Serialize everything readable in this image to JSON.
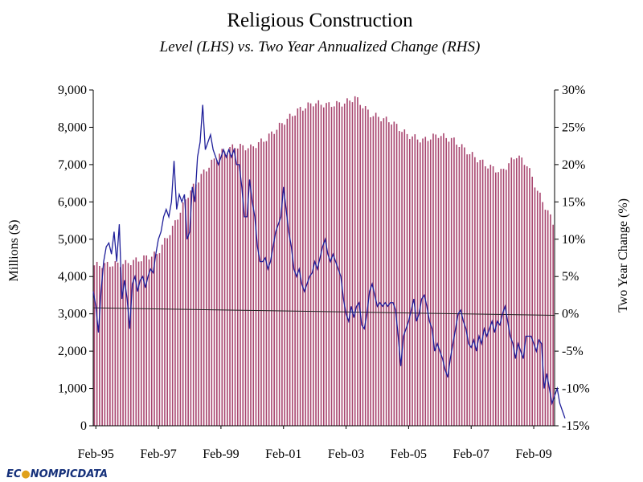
{
  "chart_data": {
    "type": "bar+line",
    "title": "Religious Construction",
    "subtitle": "Level (LHS) vs. Two Year Annualized Change (RHS)",
    "ylabel_left": "Millions ($)",
    "ylabel_right": "Two Year Change (%)",
    "ylim_left": [
      0,
      9000
    ],
    "ylim_right": [
      -15,
      30
    ],
    "yticks_left": [
      "0",
      "1,000",
      "2,000",
      "3,000",
      "4,000",
      "5,000",
      "6,000",
      "7,000",
      "8,000",
      "9,000"
    ],
    "yticks_right": [
      "-15%",
      "-10%",
      "-5%",
      "0%",
      "5%",
      "10%",
      "15%",
      "20%",
      "25%",
      "30%"
    ],
    "xticks": [
      "Feb-95",
      "Feb-97",
      "Feb-99",
      "Feb-01",
      "Feb-03",
      "Feb-05",
      "Feb-07",
      "Feb-09"
    ],
    "x_start": "Jan-95",
    "x_end": "Sep-09",
    "series": [
      {
        "name": "Level",
        "axis": "left",
        "kind": "bar",
        "color": "#a8456f",
        "anchors": [
          {
            "m": 0,
            "v": 4300
          },
          {
            "m": 12,
            "v": 4350
          },
          {
            "m": 24,
            "v": 4600
          },
          {
            "m": 30,
            "v": 5300
          },
          {
            "m": 36,
            "v": 6200
          },
          {
            "m": 42,
            "v": 6800
          },
          {
            "m": 48,
            "v": 7300
          },
          {
            "m": 54,
            "v": 7500
          },
          {
            "m": 60,
            "v": 7450
          },
          {
            "m": 66,
            "v": 7700
          },
          {
            "m": 72,
            "v": 8100
          },
          {
            "m": 78,
            "v": 8450
          },
          {
            "m": 84,
            "v": 8650
          },
          {
            "m": 90,
            "v": 8600
          },
          {
            "m": 96,
            "v": 8650
          },
          {
            "m": 100,
            "v": 8800
          },
          {
            "m": 106,
            "v": 8350
          },
          {
            "m": 114,
            "v": 8150
          },
          {
            "m": 120,
            "v": 7800
          },
          {
            "m": 126,
            "v": 7650
          },
          {
            "m": 132,
            "v": 7800
          },
          {
            "m": 138,
            "v": 7650
          },
          {
            "m": 144,
            "v": 7300
          },
          {
            "m": 150,
            "v": 7000
          },
          {
            "m": 156,
            "v": 6800
          },
          {
            "m": 162,
            "v": 7250
          },
          {
            "m": 166,
            "v": 7000
          },
          {
            "m": 170,
            "v": 6300
          },
          {
            "m": 176,
            "v": 5450
          }
        ]
      },
      {
        "name": "Two Year Annualized Change",
        "axis": "right",
        "kind": "line",
        "color": "#1f1f9a",
        "anchors": [
          {
            "m": 0,
            "v": 3
          },
          {
            "m": 1,
            "v": 1
          },
          {
            "m": 2,
            "v": -2.5
          },
          {
            "m": 3,
            "v": 3
          },
          {
            "m": 4,
            "v": 7
          },
          {
            "m": 5,
            "v": 9
          },
          {
            "m": 6,
            "v": 9.5
          },
          {
            "m": 7,
            "v": 8
          },
          {
            "m": 8,
            "v": 11
          },
          {
            "m": 9,
            "v": 7
          },
          {
            "m": 10,
            "v": 12
          },
          {
            "m": 11,
            "v": 2
          },
          {
            "m": 12,
            "v": 4.5
          },
          {
            "m": 13,
            "v": 2
          },
          {
            "m": 14,
            "v": -2
          },
          {
            "m": 15,
            "v": 4
          },
          {
            "m": 16,
            "v": 5
          },
          {
            "m": 17,
            "v": 3
          },
          {
            "m": 18,
            "v": 4.5
          },
          {
            "m": 19,
            "v": 5
          },
          {
            "m": 20,
            "v": 3.5
          },
          {
            "m": 21,
            "v": 5
          },
          {
            "m": 22,
            "v": 6
          },
          {
            "m": 23,
            "v": 5.5
          },
          {
            "m": 24,
            "v": 8
          },
          {
            "m": 25,
            "v": 10
          },
          {
            "m": 26,
            "v": 11
          },
          {
            "m": 27,
            "v": 13
          },
          {
            "m": 28,
            "v": 14
          },
          {
            "m": 29,
            "v": 13
          },
          {
            "m": 30,
            "v": 15
          },
          {
            "m": 31,
            "v": 20.5
          },
          {
            "m": 32,
            "v": 14
          },
          {
            "m": 33,
            "v": 16
          },
          {
            "m": 34,
            "v": 15
          },
          {
            "m": 35,
            "v": 16
          },
          {
            "m": 36,
            "v": 10
          },
          {
            "m": 37,
            "v": 11
          },
          {
            "m": 38,
            "v": 17
          },
          {
            "m": 39,
            "v": 15
          },
          {
            "m": 40,
            "v": 21
          },
          {
            "m": 41,
            "v": 23
          },
          {
            "m": 42,
            "v": 28
          },
          {
            "m": 43,
            "v": 22
          },
          {
            "m": 44,
            "v": 23
          },
          {
            "m": 45,
            "v": 24
          },
          {
            "m": 46,
            "v": 22
          },
          {
            "m": 47,
            "v": 21
          },
          {
            "m": 48,
            "v": 20
          },
          {
            "m": 49,
            "v": 21
          },
          {
            "m": 50,
            "v": 22
          },
          {
            "m": 51,
            "v": 21
          },
          {
            "m": 52,
            "v": 22
          },
          {
            "m": 53,
            "v": 21
          },
          {
            "m": 54,
            "v": 22
          },
          {
            "m": 55,
            "v": 20
          },
          {
            "m": 56,
            "v": 20
          },
          {
            "m": 57,
            "v": 17
          },
          {
            "m": 58,
            "v": 13
          },
          {
            "m": 59,
            "v": 13
          },
          {
            "m": 60,
            "v": 18
          },
          {
            "m": 61,
            "v": 15
          },
          {
            "m": 62,
            "v": 13
          },
          {
            "m": 63,
            "v": 9
          },
          {
            "m": 64,
            "v": 7
          },
          {
            "m": 65,
            "v": 7
          },
          {
            "m": 66,
            "v": 7.5
          },
          {
            "m": 67,
            "v": 6
          },
          {
            "m": 68,
            "v": 7
          },
          {
            "m": 69,
            "v": 9
          },
          {
            "m": 70,
            "v": 11
          },
          {
            "m": 71,
            "v": 12
          },
          {
            "m": 72,
            "v": 13
          },
          {
            "m": 73,
            "v": 17
          },
          {
            "m": 74,
            "v": 14
          },
          {
            "m": 75,
            "v": 11
          },
          {
            "m": 76,
            "v": 9
          },
          {
            "m": 77,
            "v": 6
          },
          {
            "m": 78,
            "v": 5
          },
          {
            "m": 79,
            "v": 6
          },
          {
            "m": 80,
            "v": 4
          },
          {
            "m": 81,
            "v": 3
          },
          {
            "m": 82,
            "v": 4
          },
          {
            "m": 83,
            "v": 5
          },
          {
            "m": 84,
            "v": 5.5
          },
          {
            "m": 85,
            "v": 7
          },
          {
            "m": 86,
            "v": 6
          },
          {
            "m": 87,
            "v": 7.5
          },
          {
            "m": 88,
            "v": 9
          },
          {
            "m": 89,
            "v": 10
          },
          {
            "m": 90,
            "v": 8
          },
          {
            "m": 91,
            "v": 7
          },
          {
            "m": 92,
            "v": 8
          },
          {
            "m": 93,
            "v": 7
          },
          {
            "m": 94,
            "v": 6
          },
          {
            "m": 95,
            "v": 5
          },
          {
            "m": 96,
            "v": 2
          },
          {
            "m": 97,
            "v": 0
          },
          {
            "m": 98,
            "v": -1
          },
          {
            "m": 99,
            "v": 1
          },
          {
            "m": 100,
            "v": -0.5
          },
          {
            "m": 101,
            "v": 1
          },
          {
            "m": 102,
            "v": 1.5
          },
          {
            "m": 103,
            "v": -1.5
          },
          {
            "m": 104,
            "v": -2
          },
          {
            "m": 105,
            "v": 0
          },
          {
            "m": 106,
            "v": 3
          },
          {
            "m": 107,
            "v": 4
          },
          {
            "m": 108,
            "v": 2.5
          },
          {
            "m": 109,
            "v": 1
          },
          {
            "m": 110,
            "v": 1.5
          },
          {
            "m": 111,
            "v": 1
          },
          {
            "m": 112,
            "v": 1.5
          },
          {
            "m": 113,
            "v": 1
          },
          {
            "m": 114,
            "v": 1.5
          },
          {
            "m": 115,
            "v": 1.5
          },
          {
            "m": 116,
            "v": 0.5
          },
          {
            "m": 117,
            "v": -3
          },
          {
            "m": 118,
            "v": -7
          },
          {
            "m": 119,
            "v": -3
          },
          {
            "m": 120,
            "v": -2
          },
          {
            "m": 121,
            "v": -1
          },
          {
            "m": 122,
            "v": 0.5
          },
          {
            "m": 123,
            "v": 2
          },
          {
            "m": 124,
            "v": -1
          },
          {
            "m": 125,
            "v": 0
          },
          {
            "m": 126,
            "v": 2
          },
          {
            "m": 127,
            "v": 2.5
          },
          {
            "m": 128,
            "v": 1
          },
          {
            "m": 129,
            "v": -1
          },
          {
            "m": 130,
            "v": -2
          },
          {
            "m": 131,
            "v": -5
          },
          {
            "m": 132,
            "v": -4
          },
          {
            "m": 133,
            "v": -5
          },
          {
            "m": 134,
            "v": -6
          },
          {
            "m": 135,
            "v": -7.5
          },
          {
            "m": 136,
            "v": -8.5
          },
          {
            "m": 137,
            "v": -6
          },
          {
            "m": 138,
            "v": -4
          },
          {
            "m": 139,
            "v": -2
          },
          {
            "m": 140,
            "v": 0
          },
          {
            "m": 141,
            "v": 0.5
          },
          {
            "m": 142,
            "v": -1
          },
          {
            "m": 143,
            "v": -2
          },
          {
            "m": 144,
            "v": -4
          },
          {
            "m": 145,
            "v": -4.5
          },
          {
            "m": 146,
            "v": -3.5
          },
          {
            "m": 147,
            "v": -5
          },
          {
            "m": 148,
            "v": -3
          },
          {
            "m": 149,
            "v": -4
          },
          {
            "m": 150,
            "v": -2
          },
          {
            "m": 151,
            "v": -3
          },
          {
            "m": 152,
            "v": -2
          },
          {
            "m": 153,
            "v": -1
          },
          {
            "m": 154,
            "v": -2.5
          },
          {
            "m": 155,
            "v": -1
          },
          {
            "m": 156,
            "v": -1.5
          },
          {
            "m": 157,
            "v": 0
          },
          {
            "m": 158,
            "v": 1
          },
          {
            "m": 159,
            "v": -1
          },
          {
            "m": 160,
            "v": -3
          },
          {
            "m": 161,
            "v": -4
          },
          {
            "m": 162,
            "v": -6
          },
          {
            "m": 163,
            "v": -4
          },
          {
            "m": 164,
            "v": -5
          },
          {
            "m": 165,
            "v": -6
          },
          {
            "m": 166,
            "v": -3
          },
          {
            "m": 167,
            "v": -3
          },
          {
            "m": 168,
            "v": -3
          },
          {
            "m": 169,
            "v": -4
          },
          {
            "m": 170,
            "v": -5
          },
          {
            "m": 171,
            "v": -3.5
          },
          {
            "m": 172,
            "v": -4
          },
          {
            "m": 173,
            "v": -10
          },
          {
            "m": 174,
            "v": -8
          },
          {
            "m": 175,
            "v": -10
          },
          {
            "m": 176,
            "v": -12
          },
          {
            "m": 177,
            "v": -11
          },
          {
            "m": 178,
            "v": -10
          },
          {
            "m": 179,
            "v": -12
          },
          {
            "m": 180,
            "v": -13
          },
          {
            "m": 181,
            "v": -14
          }
        ]
      }
    ]
  },
  "brand": {
    "prefix": "EC",
    "suffix": "NOMPICDATA",
    "color_main": "#15307a",
    "color_accent": "#e0a11b"
  }
}
